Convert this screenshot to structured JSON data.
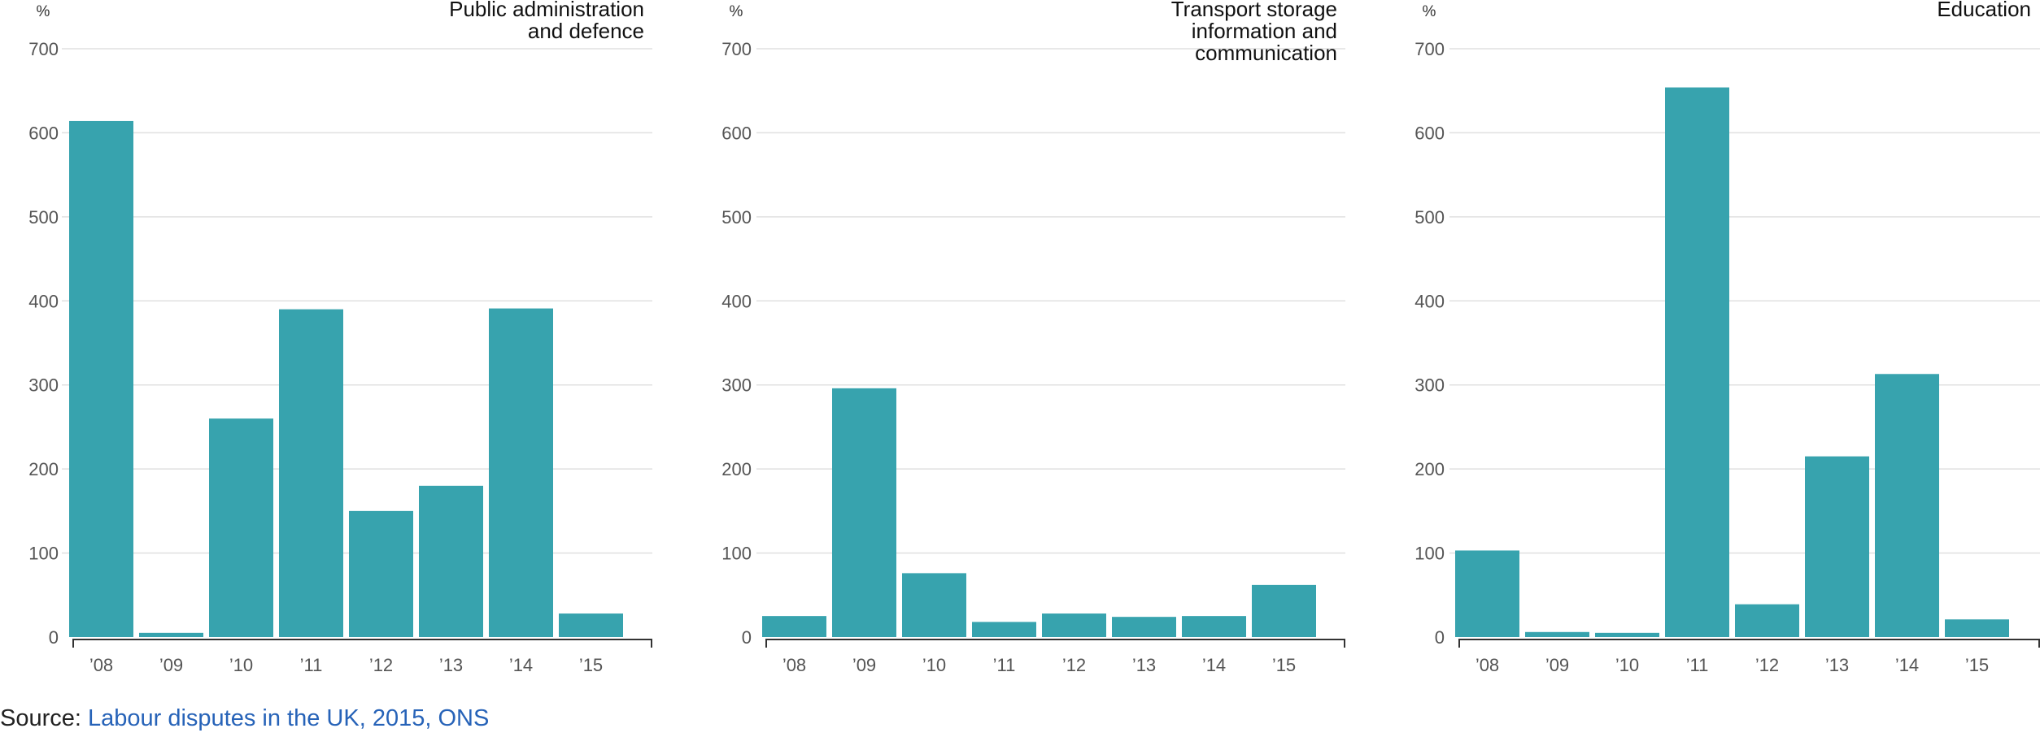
{
  "chart_data": [
    {
      "type": "bar",
      "title_lines": [
        "Public administration",
        "and defence"
      ],
      "unit": "%",
      "categories": [
        "’08",
        "’09",
        "’10",
        "’11",
        "’12",
        "’13",
        "’14",
        "’15"
      ],
      "values": [
        614,
        5,
        260,
        390,
        150,
        180,
        391,
        28
      ],
      "ylim": [
        0,
        700
      ],
      "yticks": [
        0,
        100,
        200,
        300,
        400,
        500,
        600,
        700
      ],
      "grid": true,
      "bar_color": "#37a3ae"
    },
    {
      "type": "bar",
      "title_lines": [
        "Transport storage",
        "information and",
        "communication"
      ],
      "unit": "%",
      "categories": [
        "’08",
        "’09",
        "’10",
        "’11",
        "’12",
        "’13",
        "’14",
        "’15"
      ],
      "values": [
        25,
        296,
        76,
        18,
        28,
        24,
        25,
        62
      ],
      "ylim": [
        0,
        700
      ],
      "yticks": [
        0,
        100,
        200,
        300,
        400,
        500,
        600,
        700
      ],
      "grid": true,
      "bar_color": "#37a3ae"
    },
    {
      "type": "bar",
      "title_lines": [
        "Education"
      ],
      "unit": "%",
      "categories": [
        "’08",
        "’09",
        "’10",
        "’11",
        "’12",
        "’13",
        "’14",
        "’15"
      ],
      "values": [
        103,
        6,
        5,
        654,
        39,
        215,
        313,
        21
      ],
      "ylim": [
        0,
        700
      ],
      "yticks": [
        0,
        100,
        200,
        300,
        400,
        500,
        600,
        700
      ],
      "grid": true,
      "bar_color": "#37a3ae"
    }
  ],
  "source": {
    "prefix": "Source: ",
    "link_text": "Labour disputes in the UK, 2015, ONS",
    "link_color": "#2763b8"
  },
  "colors": {
    "bar": "#37a3ae",
    "grid": "#e0e0e0",
    "axis": "#333333",
    "tick_label": "#555555"
  }
}
